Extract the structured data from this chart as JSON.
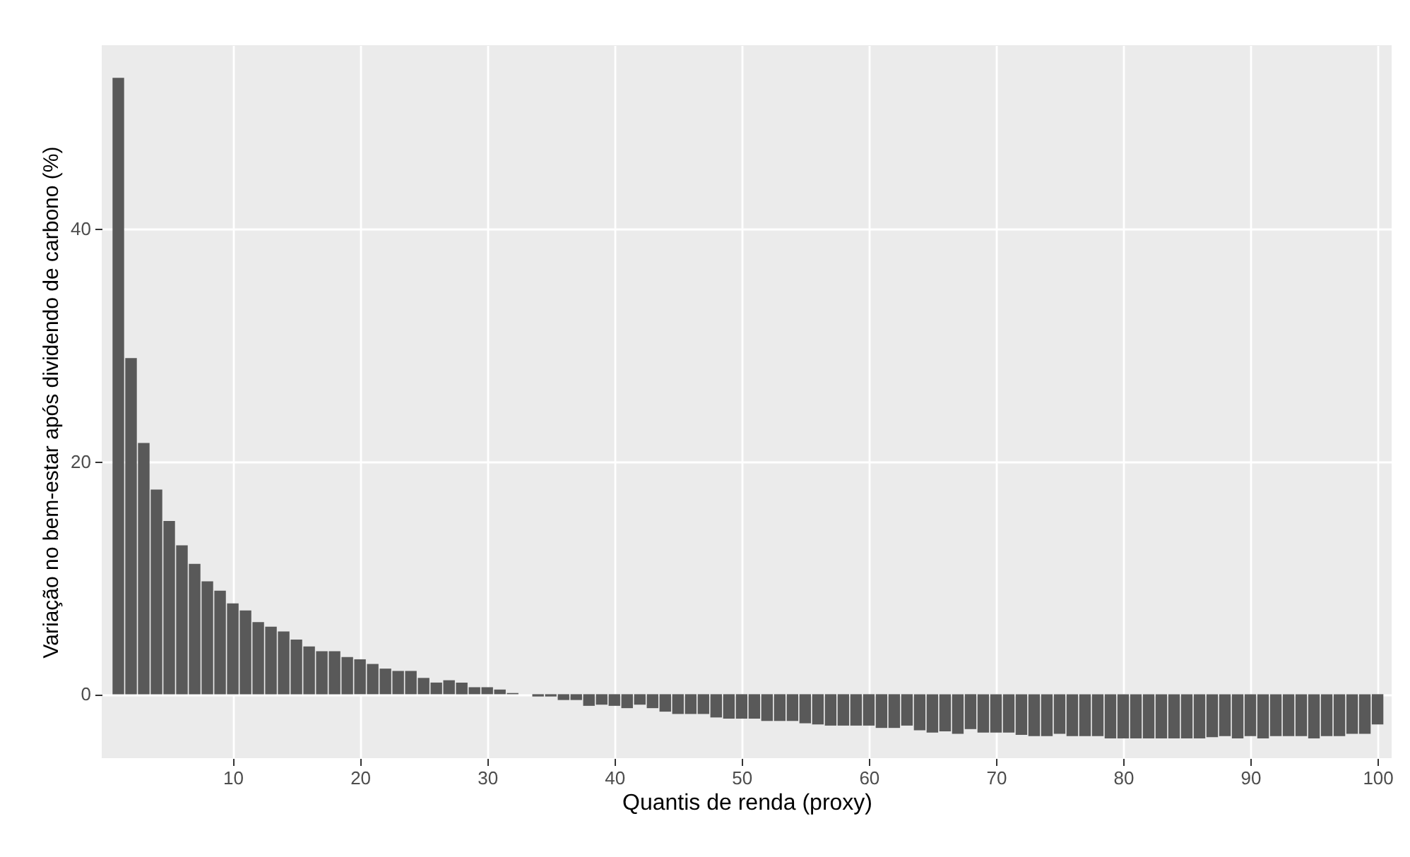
{
  "chart_data": {
    "type": "bar",
    "xlabel": "Quantis de renda (proxy)",
    "ylabel": "Variação no bem-estar após dividendo de carbono (%)",
    "x": [
      1,
      2,
      3,
      4,
      5,
      6,
      7,
      8,
      9,
      10,
      11,
      12,
      13,
      14,
      15,
      16,
      17,
      18,
      19,
      20,
      21,
      22,
      23,
      24,
      25,
      26,
      27,
      28,
      29,
      30,
      31,
      32,
      33,
      34,
      35,
      36,
      37,
      38,
      39,
      40,
      41,
      42,
      43,
      44,
      45,
      46,
      47,
      48,
      49,
      50,
      51,
      52,
      53,
      54,
      55,
      56,
      57,
      58,
      59,
      60,
      61,
      62,
      63,
      64,
      65,
      66,
      67,
      68,
      69,
      70,
      71,
      72,
      73,
      74,
      75,
      76,
      77,
      78,
      79,
      80,
      81,
      82,
      83,
      84,
      85,
      86,
      87,
      88,
      89,
      90,
      91,
      92,
      93,
      94,
      95,
      96,
      97,
      98,
      99,
      100
    ],
    "values": [
      53.0,
      28.9,
      21.6,
      17.6,
      14.9,
      12.8,
      11.2,
      9.7,
      8.9,
      7.8,
      7.2,
      6.2,
      5.8,
      5.4,
      4.7,
      4.1,
      3.7,
      3.7,
      3.2,
      3.0,
      2.6,
      2.2,
      2.0,
      2.0,
      1.4,
      1.0,
      1.2,
      1.0,
      0.6,
      0.6,
      0.4,
      0.1,
      0,
      -0.2,
      -0.2,
      -0.5,
      -0.5,
      -1.0,
      -0.9,
      -1.0,
      -1.2,
      -0.9,
      -1.2,
      -1.5,
      -1.7,
      -1.7,
      -1.7,
      -2.0,
      -2.1,
      -2.1,
      -2.1,
      -2.3,
      -2.3,
      -2.3,
      -2.5,
      -2.6,
      -2.7,
      -2.7,
      -2.7,
      -2.7,
      -2.9,
      -2.9,
      -2.7,
      -3.1,
      -3.3,
      -3.2,
      -3.4,
      -3.0,
      -3.3,
      -3.3,
      -3.3,
      -3.5,
      -3.6,
      -3.6,
      -3.4,
      -3.6,
      -3.6,
      -3.6,
      -3.8,
      -3.8,
      -3.8,
      -3.8,
      -3.8,
      -3.8,
      -3.8,
      -3.8,
      -3.7,
      -3.6,
      -3.8,
      -3.6,
      -3.8,
      -3.6,
      -3.6,
      -3.6,
      -3.8,
      -3.6,
      -3.6,
      -3.4,
      -3.4,
      -2.6
    ],
    "color": "#595959",
    "xlim": [
      0.25,
      100.55
    ],
    "xticks": [
      10,
      20,
      30,
      40,
      50,
      60,
      70,
      80,
      90,
      100
    ],
    "ylim": [
      -5.5,
      55.8
    ],
    "yticks": [
      0,
      20,
      40
    ],
    "grid": true
  }
}
